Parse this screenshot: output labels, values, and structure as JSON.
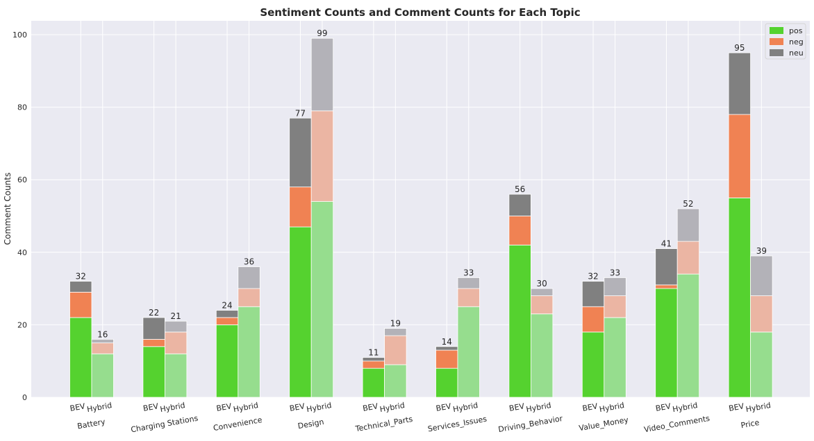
{
  "chart_data": {
    "type": "bar",
    "stacked": true,
    "title": "Sentiment Counts and Comment Counts for Each Topic",
    "xlabel": "",
    "ylabel": "Comment Counts",
    "ylim": [
      0,
      104
    ],
    "yticks": [
      0,
      20,
      40,
      60,
      80,
      100
    ],
    "grid": true,
    "legend_position": "top-right",
    "groups": [
      "BEV",
      "Hybrid"
    ],
    "categories": [
      "Battery",
      "Charging Stations",
      "Convenience",
      "Design",
      "Technical_Parts",
      "Services_Issues",
      "Driving_Behavior",
      "Value_Money",
      "Video_Comments",
      "Price"
    ],
    "series": [
      {
        "name": "pos",
        "color": "#55d22f",
        "light_color": "#96dd8e",
        "BEV": [
          22,
          14,
          20,
          47,
          8,
          8,
          42,
          18,
          30,
          55
        ],
        "Hybrid": [
          12,
          12,
          25,
          54,
          9,
          25,
          23,
          22,
          34,
          18
        ]
      },
      {
        "name": "neg",
        "color": "#f08253",
        "light_color": "#ebb5a3",
        "BEV": [
          7,
          2,
          2,
          11,
          2,
          5,
          8,
          7,
          1,
          23
        ],
        "Hybrid": [
          3,
          6,
          5,
          25,
          8,
          5,
          5,
          6,
          9,
          10
        ]
      },
      {
        "name": "neu",
        "color": "#808080",
        "light_color": "#b3b2b8",
        "BEV": [
          3,
          6,
          2,
          19,
          1,
          1,
          6,
          7,
          10,
          17
        ],
        "Hybrid": [
          1,
          3,
          6,
          20,
          2,
          3,
          2,
          5,
          9,
          11
        ]
      }
    ],
    "totals": {
      "BEV": [
        32,
        22,
        24,
        77,
        11,
        14,
        56,
        32,
        41,
        95
      ],
      "Hybrid": [
        16,
        21,
        36,
        99,
        19,
        33,
        30,
        33,
        52,
        39
      ]
    }
  },
  "style": {
    "background": "#ffffff",
    "plot_background": "#eaeaf2",
    "grid_color": "#ffffff",
    "text_color": "#262626"
  }
}
